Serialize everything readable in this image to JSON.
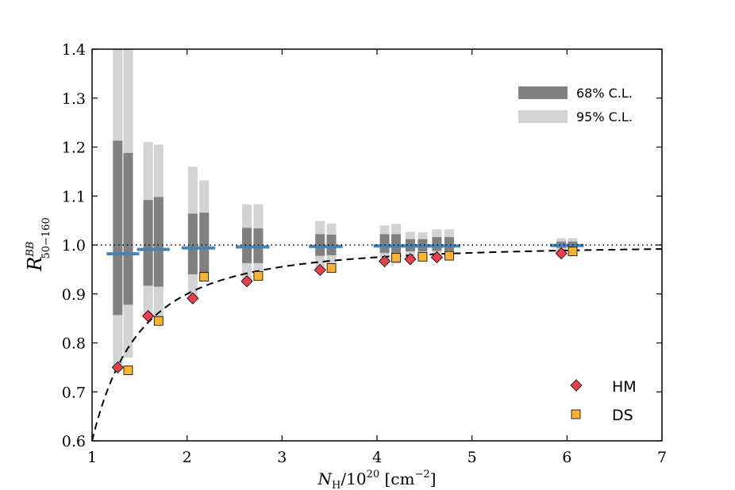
{
  "chart_data": {
    "type": "scatter",
    "xlabel_main": "N",
    "xlabel_sub": "H",
    "xlabel_rest": "/10",
    "xlabel_exp": "20",
    "xlabel_unit": "[cm",
    "xlabel_unit_exp": "−2",
    "xlabel_unit_close": "]",
    "ylabel_main": "R",
    "ylabel_sup": "BB",
    "ylabel_sub": "50−160",
    "xlim": [
      1,
      7
    ],
    "ylim": [
      0.6,
      1.4
    ],
    "x_ticks": [
      1,
      2,
      3,
      4,
      5,
      6,
      7
    ],
    "y_ticks": [
      0.6,
      0.7,
      0.8,
      0.9,
      1.0,
      1.1,
      1.2,
      1.3,
      1.4
    ],
    "x_tick_labels": [
      "1",
      "2",
      "3",
      "4",
      "5",
      "6",
      "7"
    ],
    "y_tick_labels": [
      "0.6",
      "0.7",
      "0.8",
      "0.9",
      "1.0",
      "1.1",
      "1.2",
      "1.3",
      "1.4"
    ],
    "reference_line": 1.0,
    "model_curve": {
      "form": "1 - a/(x^2)",
      "a": 0.4,
      "style": "dashed"
    },
    "bands": [
      {
        "x": 1.27,
        "median": 0.982,
        "ci68": [
          0.857,
          1.213
        ],
        "ci95": [
          0.75,
          1.4
        ]
      },
      {
        "x": 1.38,
        "median": 0.982,
        "ci68": [
          0.878,
          1.188
        ],
        "ci95": [
          0.77,
          1.4
        ]
      },
      {
        "x": 1.59,
        "median": 0.991,
        "ci68": [
          0.917,
          1.092
        ],
        "ci95": [
          0.855,
          1.21
        ]
      },
      {
        "x": 1.7,
        "median": 0.991,
        "ci68": [
          0.915,
          1.098
        ],
        "ci95": [
          0.848,
          1.205
        ]
      },
      {
        "x": 2.06,
        "median": 0.994,
        "ci68": [
          0.94,
          1.064
        ],
        "ci95": [
          0.895,
          1.16
        ]
      },
      {
        "x": 2.18,
        "median": 0.994,
        "ci68": [
          0.942,
          1.066
        ],
        "ci95": [
          0.935,
          1.132
        ]
      },
      {
        "x": 2.63,
        "median": 0.996,
        "ci68": [
          0.963,
          1.035
        ],
        "ci95": [
          0.928,
          1.083
        ]
      },
      {
        "x": 2.75,
        "median": 0.996,
        "ci68": [
          0.963,
          1.034
        ],
        "ci95": [
          0.937,
          1.083
        ]
      },
      {
        "x": 3.4,
        "median": 0.997,
        "ci68": [
          0.978,
          1.022
        ],
        "ci95": [
          0.95,
          1.049
        ]
      },
      {
        "x": 3.52,
        "median": 0.997,
        "ci68": [
          0.979,
          1.021
        ],
        "ci95": [
          0.955,
          1.044
        ]
      },
      {
        "x": 4.08,
        "median": 0.998,
        "ci68": [
          0.984,
          1.022
        ],
        "ci95": [
          0.968,
          1.04
        ]
      },
      {
        "x": 4.2,
        "median": 0.998,
        "ci68": [
          0.984,
          1.022
        ],
        "ci95": [
          0.962,
          1.043
        ]
      },
      {
        "x": 4.35,
        "median": 0.998,
        "ci68": [
          0.987,
          1.012
        ],
        "ci95": [
          0.972,
          1.027
        ]
      },
      {
        "x": 4.48,
        "median": 0.998,
        "ci68": [
          0.987,
          1.012
        ],
        "ci95": [
          0.977,
          1.026
        ]
      },
      {
        "x": 4.63,
        "median": 0.998,
        "ci68": [
          0.988,
          1.016
        ],
        "ci95": [
          0.976,
          1.032
        ]
      },
      {
        "x": 4.76,
        "median": 0.998,
        "ci68": [
          0.988,
          1.016
        ],
        "ci95": [
          0.978,
          1.032
        ]
      },
      {
        "x": 5.94,
        "median": 0.999,
        "ci68": [
          0.994,
          1.007
        ],
        "ci95": [
          0.985,
          1.014
        ]
      },
      {
        "x": 6.06,
        "median": 0.999,
        "ci68": [
          0.994,
          1.007
        ],
        "ci95": [
          0.987,
          1.014
        ]
      }
    ],
    "series": [
      {
        "name": "HM",
        "marker": "diamond",
        "color": "#e8414e",
        "points": [
          [
            1.27,
            0.75
          ],
          [
            1.59,
            0.855
          ],
          [
            2.06,
            0.891
          ],
          [
            2.63,
            0.926
          ],
          [
            3.4,
            0.949
          ],
          [
            4.08,
            0.967
          ],
          [
            4.35,
            0.971
          ],
          [
            4.63,
            0.975
          ],
          [
            5.94,
            0.983
          ]
        ]
      },
      {
        "name": "DS",
        "marker": "square",
        "color": "#f9b233",
        "points": [
          [
            1.38,
            0.744
          ],
          [
            1.7,
            0.845
          ],
          [
            2.18,
            0.935
          ],
          [
            2.75,
            0.937
          ],
          [
            3.52,
            0.953
          ],
          [
            4.2,
            0.974
          ],
          [
            4.48,
            0.976
          ],
          [
            4.76,
            0.978
          ],
          [
            6.06,
            0.987
          ]
        ]
      }
    ],
    "band_legend": [
      {
        "label": "68% C.L.",
        "color": "#808080"
      },
      {
        "label": "95% C.L.",
        "color": "#d3d3d3"
      }
    ],
    "median_color": "#4682b4",
    "legend_position": "top-right (bands), bottom-right (markers)"
  }
}
